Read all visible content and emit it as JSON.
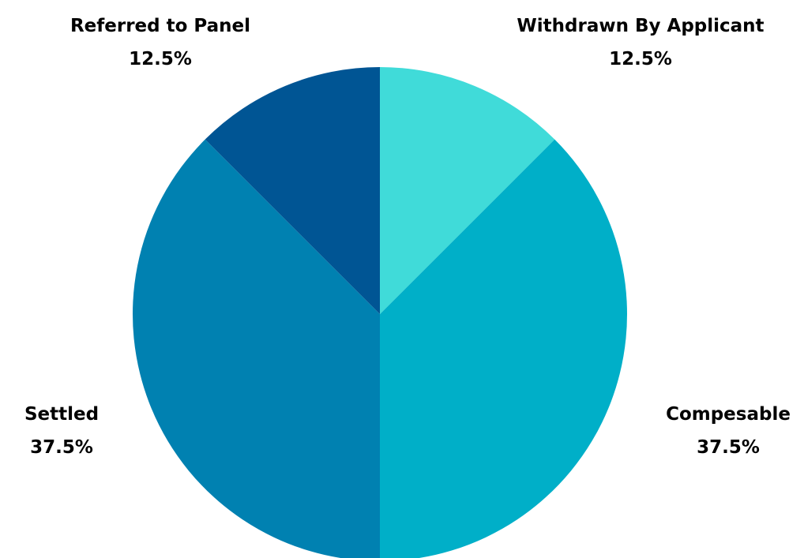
{
  "chart_data": {
    "type": "pie",
    "title": "",
    "slices": [
      {
        "label": "Withdrawn By Applicant",
        "value": 12.5,
        "value_label": "12.5%",
        "color": "#40DBD9"
      },
      {
        "label": "Compesable",
        "value": 37.5,
        "value_label": "37.5%",
        "color": "#00AFC8"
      },
      {
        "label": "Settled",
        "value": 37.5,
        "value_label": "37.5%",
        "color": "#0081B1"
      },
      {
        "label": "Referred to Panel",
        "value": 12.5,
        "value_label": "12.5%",
        "color": "#005594"
      }
    ],
    "start_angle": "12 o'clock",
    "direction": "clockwise",
    "legend": "none"
  }
}
